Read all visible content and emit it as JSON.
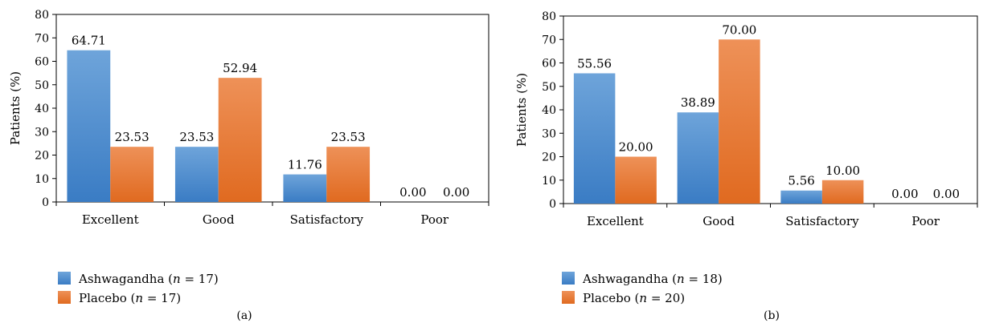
{
  "chart_data": [
    {
      "type": "bar",
      "ylabel": "Patients (%)",
      "ylim": [
        0,
        80
      ],
      "yticks": [
        0,
        10,
        20,
        30,
        40,
        50,
        60,
        70,
        80
      ],
      "categories": [
        "Excellent",
        "Good",
        "Satisfactory",
        "Poor"
      ],
      "series": [
        {
          "name": "Ashwagandha (n = 17)",
          "legend_prefix": "Ashwagandha (",
          "legend_var": "n",
          "legend_suffix": " = 17)",
          "color": "#4f90d0",
          "values": [
            64.71,
            23.53,
            11.76,
            0.0
          ],
          "labels": [
            "64.71",
            "23.53",
            "11.76",
            "0.00"
          ]
        },
        {
          "name": "Placebo (n = 17)",
          "legend_prefix": "Placebo (",
          "legend_var": "n",
          "legend_suffix": " = 17)",
          "color": "#ea7d38",
          "values": [
            23.53,
            52.94,
            23.53,
            0.0
          ],
          "labels": [
            "23.53",
            "52.94",
            "23.53",
            "0.00"
          ]
        }
      ],
      "grid": false,
      "legend_position": "bottom-left",
      "panel_label": "(a)"
    },
    {
      "type": "bar",
      "ylabel": "Patients (%)",
      "ylim": [
        0,
        80
      ],
      "yticks": [
        0,
        10,
        20,
        30,
        40,
        50,
        60,
        70,
        80
      ],
      "categories": [
        "Excellent",
        "Good",
        "Satisfactory",
        "Poor"
      ],
      "series": [
        {
          "name": "Ashwagandha (n = 18)",
          "legend_prefix": "Ashwagandha (",
          "legend_var": "n",
          "legend_suffix": " = 18)",
          "color": "#4f90d0",
          "values": [
            55.56,
            38.89,
            5.56,
            0.0
          ],
          "labels": [
            "55.56",
            "38.89",
            "5.56",
            "0.00"
          ]
        },
        {
          "name": "Placebo (n = 20)",
          "legend_prefix": "Placebo (",
          "legend_var": "n",
          "legend_suffix": " = 20)",
          "color": "#ea7d38",
          "values": [
            20.0,
            70.0,
            10.0,
            0.0
          ],
          "labels": [
            "20.00",
            "70.00",
            "10.00",
            "0.00"
          ]
        }
      ],
      "grid": false,
      "legend_position": "bottom-left",
      "panel_label": "(b)"
    }
  ]
}
